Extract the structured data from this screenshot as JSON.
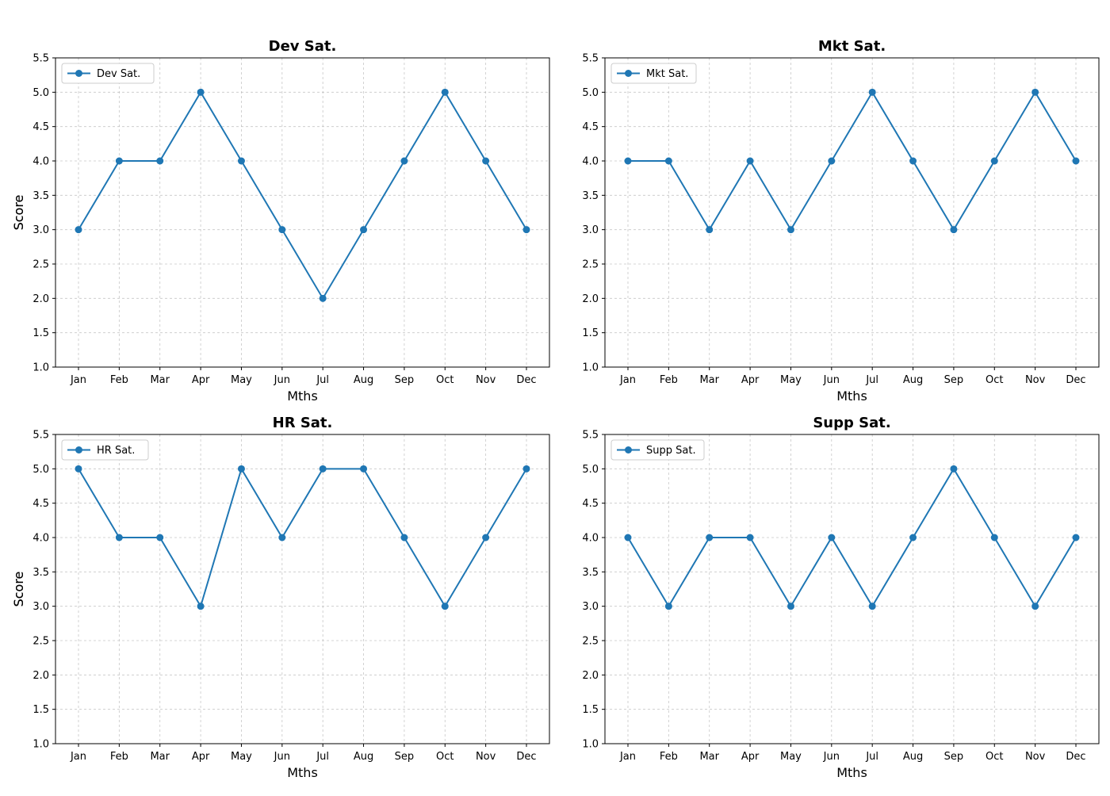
{
  "colors": {
    "series": "#1f77b4",
    "axes": "#000000",
    "grid": "#b0b0b0"
  },
  "chart_data": [
    {
      "type": "line",
      "title": "Dev Sat.",
      "xlabel": "Mths",
      "ylabel": "Score",
      "categories": [
        "Jan",
        "Feb",
        "Mar",
        "Apr",
        "May",
        "Jun",
        "Jul",
        "Aug",
        "Sep",
        "Oct",
        "Nov",
        "Dec"
      ],
      "ylim": [
        1.0,
        5.5
      ],
      "yticks": [
        "1.0",
        "1.5",
        "2.0",
        "2.5",
        "3.0",
        "3.5",
        "4.0",
        "4.5",
        "5.0",
        "5.5"
      ],
      "grid": true,
      "legend_position": "top-left",
      "series": [
        {
          "name": "Dev Sat.",
          "values": [
            3,
            4,
            4,
            5,
            4,
            3,
            2,
            3,
            4,
            5,
            4,
            3
          ]
        }
      ]
    },
    {
      "type": "line",
      "title": "Mkt Sat.",
      "xlabel": "Mths",
      "ylabel": "Score",
      "categories": [
        "Jan",
        "Feb",
        "Mar",
        "Apr",
        "May",
        "Jun",
        "Jul",
        "Aug",
        "Sep",
        "Oct",
        "Nov",
        "Dec"
      ],
      "ylim": [
        1.0,
        5.5
      ],
      "yticks": [
        "1.0",
        "1.5",
        "2.0",
        "2.5",
        "3.0",
        "3.5",
        "4.0",
        "4.5",
        "5.0",
        "5.5"
      ],
      "grid": true,
      "legend_position": "top-left",
      "series": [
        {
          "name": "Mkt Sat.",
          "values": [
            4,
            4,
            3,
            4,
            3,
            4,
            5,
            4,
            3,
            4,
            5,
            4
          ]
        }
      ]
    },
    {
      "type": "line",
      "title": "HR Sat.",
      "xlabel": "Mths",
      "ylabel": "Score",
      "categories": [
        "Jan",
        "Feb",
        "Mar",
        "Apr",
        "May",
        "Jun",
        "Jul",
        "Aug",
        "Sep",
        "Oct",
        "Nov",
        "Dec"
      ],
      "ylim": [
        1.0,
        5.5
      ],
      "yticks": [
        "1.0",
        "1.5",
        "2.0",
        "2.5",
        "3.0",
        "3.5",
        "4.0",
        "4.5",
        "5.0",
        "5.5"
      ],
      "grid": true,
      "legend_position": "top-left",
      "series": [
        {
          "name": "HR Sat.",
          "values": [
            5,
            4,
            4,
            3,
            5,
            4,
            5,
            5,
            4,
            3,
            4,
            5
          ]
        }
      ]
    },
    {
      "type": "line",
      "title": "Supp Sat.",
      "xlabel": "Mths",
      "ylabel": "Score",
      "categories": [
        "Jan",
        "Feb",
        "Mar",
        "Apr",
        "May",
        "Jun",
        "Jul",
        "Aug",
        "Sep",
        "Oct",
        "Nov",
        "Dec"
      ],
      "ylim": [
        1.0,
        5.5
      ],
      "yticks": [
        "1.0",
        "1.5",
        "2.0",
        "2.5",
        "3.0",
        "3.5",
        "4.0",
        "4.5",
        "5.0",
        "5.5"
      ],
      "grid": true,
      "legend_position": "top-left",
      "series": [
        {
          "name": "Supp Sat.",
          "values": [
            4,
            3,
            4,
            4,
            3,
            4,
            3,
            4,
            5,
            4,
            3,
            4
          ]
        }
      ]
    }
  ]
}
